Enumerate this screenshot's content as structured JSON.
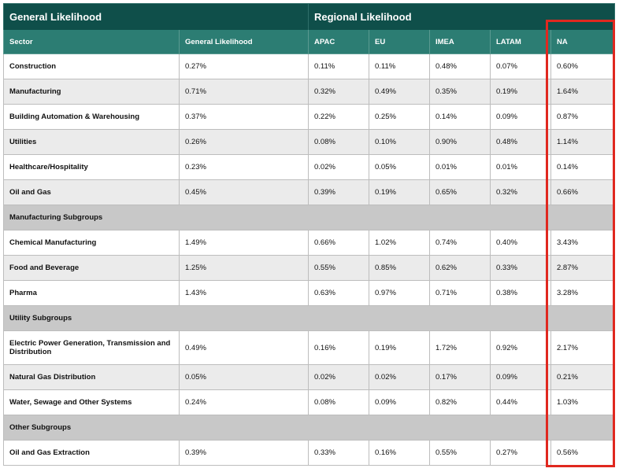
{
  "header": {
    "general_group": "General Likelihood",
    "regional_group": "Regional Likelihood"
  },
  "columns": [
    "Sector",
    "General Likelihood",
    "APAC",
    "EU",
    "IMEA",
    "LATAM",
    "NA"
  ],
  "rows": [
    {
      "type": "data",
      "sector": "Construction",
      "values": [
        "0.27%",
        "0.11%",
        "0.11%",
        "0.48%",
        "0.07%",
        "0.60%"
      ]
    },
    {
      "type": "data",
      "sector": "Manufacturing",
      "values": [
        "0.71%",
        "0.32%",
        "0.49%",
        "0.35%",
        "0.19%",
        "1.64%"
      ]
    },
    {
      "type": "data",
      "sector": "Building Automation & Warehousing",
      "values": [
        "0.37%",
        "0.22%",
        "0.25%",
        "0.14%",
        "0.09%",
        "0.87%"
      ]
    },
    {
      "type": "data",
      "sector": "Utilities",
      "values": [
        "0.26%",
        "0.08%",
        "0.10%",
        "0.90%",
        "0.48%",
        "1.14%"
      ]
    },
    {
      "type": "data",
      "sector": "Healthcare/Hospitality",
      "values": [
        "0.23%",
        "0.02%",
        "0.05%",
        "0.01%",
        "0.01%",
        "0.14%"
      ]
    },
    {
      "type": "data",
      "sector": "Oil and Gas",
      "values": [
        "0.45%",
        "0.39%",
        "0.19%",
        "0.65%",
        "0.32%",
        "0.66%"
      ]
    },
    {
      "type": "subgroup",
      "label": "Manufacturing Subgroups"
    },
    {
      "type": "data",
      "sector": "Chemical Manufacturing",
      "values": [
        "1.49%",
        "0.66%",
        "1.02%",
        "0.74%",
        "0.40%",
        "3.43%"
      ]
    },
    {
      "type": "data",
      "sector": "Food and Beverage",
      "values": [
        "1.25%",
        "0.55%",
        "0.85%",
        "0.62%",
        "0.33%",
        "2.87%"
      ]
    },
    {
      "type": "data",
      "sector": "Pharma",
      "values": [
        "1.43%",
        "0.63%",
        "0.97%",
        "0.71%",
        "0.38%",
        "3.28%"
      ]
    },
    {
      "type": "subgroup",
      "label": "Utility Subgroups"
    },
    {
      "type": "data",
      "tall": true,
      "sector": "Electric Power Generation, Transmission and Distribution",
      "values": [
        "0.49%",
        "0.16%",
        "0.19%",
        "1.72%",
        "0.92%",
        "2.17%"
      ]
    },
    {
      "type": "data",
      "sector": "Natural Gas Distribution",
      "values": [
        "0.05%",
        "0.02%",
        "0.02%",
        "0.17%",
        "0.09%",
        "0.21%"
      ]
    },
    {
      "type": "data",
      "sector": "Water, Sewage and Other Systems",
      "values": [
        "0.24%",
        "0.08%",
        "0.09%",
        "0.82%",
        "0.44%",
        "1.03%"
      ]
    },
    {
      "type": "subgroup",
      "label": "Other Subgroups"
    },
    {
      "type": "data",
      "sector": "Oil and Gas Extraction",
      "values": [
        "0.39%",
        "0.33%",
        "0.16%",
        "0.55%",
        "0.27%",
        "0.56%"
      ]
    }
  ],
  "colors": {
    "header_dark": "#0f4f4a",
    "header_teal": "#2c7d73",
    "row_shade": "#ebebeb",
    "subgroup_fill": "#c8c8c8",
    "highlight_red": "#e0281f"
  }
}
